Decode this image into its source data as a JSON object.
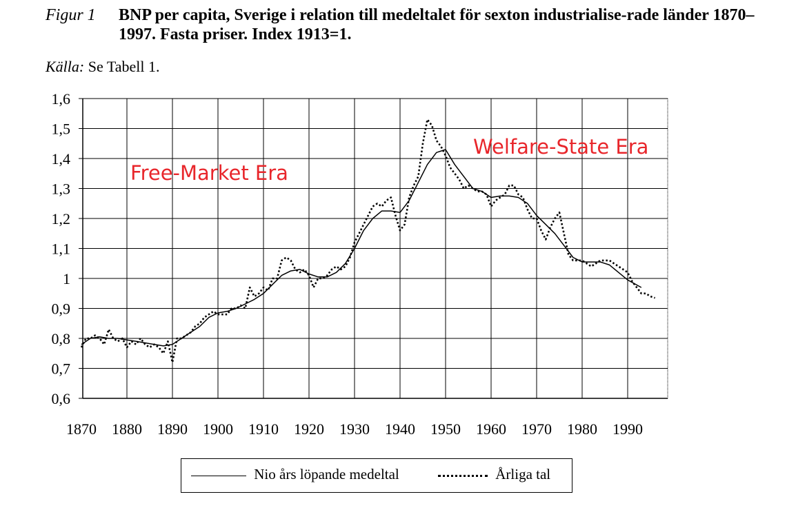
{
  "caption": {
    "label": "Figur 1",
    "title": "BNP per capita, Sverige i relation till medeltalet för sexton industrialise-rade länder 1870–1997. Fasta priser. Index 1913=1.",
    "source_label": "Källa:",
    "source_text": "Se Tabell 1."
  },
  "legend": {
    "solid_label": "Nio års löpande medeltal",
    "dotted_label": "Årliga tal"
  },
  "annotations": [
    "Free-Market Era",
    "Welfare-State Era"
  ],
  "colors": {
    "annotation": "#e8262b",
    "line": "#000000",
    "grid": "#000000"
  },
  "chart_data": {
    "type": "line",
    "title": "BNP per capita, Sverige i relation till medeltalet för sexton industrialise-rade länder 1870–1997. Fasta priser. Index 1913=1.",
    "xlabel": "",
    "ylabel": "",
    "xlim": [
      1870,
      1997
    ],
    "ylim": [
      0.6,
      1.6
    ],
    "x_ticks": [
      1870,
      1880,
      1890,
      1900,
      1910,
      1920,
      1930,
      1940,
      1950,
      1960,
      1970,
      1980,
      1990
    ],
    "x_tick_labels": [
      "1870",
      "1880",
      "1890",
      "1900",
      "1910",
      "1920",
      "1930",
      "1940",
      "1950",
      "1960",
      "1970",
      "1980",
      "1990"
    ],
    "y_ticks": [
      0.6,
      0.7,
      0.8,
      0.9,
      1.0,
      1.1,
      1.2,
      1.3,
      1.4,
      1.5,
      1.6
    ],
    "y_tick_labels": [
      "0,6",
      "0,7",
      "0,8",
      "0,9",
      "1",
      "1,1",
      "1,2",
      "1,3",
      "1,4",
      "1,5",
      "1,6"
    ],
    "grid": true,
    "legend_position": "bottom",
    "series": [
      {
        "name": "Nio års löpande medeltal",
        "style": "solid",
        "points": [
          [
            1870,
            0.78
          ],
          [
            1872,
            0.8
          ],
          [
            1874,
            0.805
          ],
          [
            1876,
            0.8
          ],
          [
            1878,
            0.8
          ],
          [
            1880,
            0.795
          ],
          [
            1882,
            0.79
          ],
          [
            1884,
            0.785
          ],
          [
            1886,
            0.78
          ],
          [
            1888,
            0.775
          ],
          [
            1890,
            0.78
          ],
          [
            1892,
            0.8
          ],
          [
            1894,
            0.82
          ],
          [
            1896,
            0.84
          ],
          [
            1898,
            0.87
          ],
          [
            1900,
            0.885
          ],
          [
            1902,
            0.89
          ],
          [
            1904,
            0.9
          ],
          [
            1906,
            0.915
          ],
          [
            1908,
            0.93
          ],
          [
            1910,
            0.95
          ],
          [
            1912,
            0.98
          ],
          [
            1914,
            1.01
          ],
          [
            1916,
            1.025
          ],
          [
            1918,
            1.03
          ],
          [
            1920,
            1.015
          ],
          [
            1922,
            1.005
          ],
          [
            1924,
            1.005
          ],
          [
            1926,
            1.02
          ],
          [
            1928,
            1.05
          ],
          [
            1930,
            1.1
          ],
          [
            1932,
            1.16
          ],
          [
            1934,
            1.2
          ],
          [
            1936,
            1.225
          ],
          [
            1938,
            1.225
          ],
          [
            1940,
            1.22
          ],
          [
            1942,
            1.26
          ],
          [
            1944,
            1.32
          ],
          [
            1946,
            1.38
          ],
          [
            1948,
            1.42
          ],
          [
            1950,
            1.43
          ],
          [
            1952,
            1.38
          ],
          [
            1954,
            1.34
          ],
          [
            1956,
            1.3
          ],
          [
            1958,
            1.29
          ],
          [
            1960,
            1.27
          ],
          [
            1962,
            1.275
          ],
          [
            1964,
            1.275
          ],
          [
            1966,
            1.27
          ],
          [
            1968,
            1.25
          ],
          [
            1970,
            1.21
          ],
          [
            1972,
            1.18
          ],
          [
            1974,
            1.15
          ],
          [
            1976,
            1.11
          ],
          [
            1978,
            1.07
          ],
          [
            1980,
            1.055
          ],
          [
            1982,
            1.055
          ],
          [
            1984,
            1.055
          ],
          [
            1986,
            1.045
          ],
          [
            1988,
            1.02
          ],
          [
            1990,
            0.995
          ],
          [
            1993,
            0.97
          ]
        ]
      },
      {
        "name": "Årliga tal",
        "style": "dotted",
        "points": [
          [
            1870,
            0.77
          ],
          [
            1871,
            0.8
          ],
          [
            1872,
            0.8
          ],
          [
            1873,
            0.81
          ],
          [
            1874,
            0.8
          ],
          [
            1875,
            0.78
          ],
          [
            1876,
            0.83
          ],
          [
            1877,
            0.8
          ],
          [
            1878,
            0.79
          ],
          [
            1879,
            0.8
          ],
          [
            1880,
            0.77
          ],
          [
            1881,
            0.79
          ],
          [
            1882,
            0.78
          ],
          [
            1883,
            0.8
          ],
          [
            1884,
            0.78
          ],
          [
            1885,
            0.77
          ],
          [
            1886,
            0.78
          ],
          [
            1887,
            0.77
          ],
          [
            1888,
            0.75
          ],
          [
            1889,
            0.79
          ],
          [
            1890,
            0.72
          ],
          [
            1891,
            0.8
          ],
          [
            1892,
            0.8
          ],
          [
            1893,
            0.81
          ],
          [
            1894,
            0.82
          ],
          [
            1895,
            0.84
          ],
          [
            1896,
            0.85
          ],
          [
            1897,
            0.87
          ],
          [
            1898,
            0.88
          ],
          [
            1899,
            0.89
          ],
          [
            1900,
            0.88
          ],
          [
            1901,
            0.88
          ],
          [
            1902,
            0.88
          ],
          [
            1903,
            0.9
          ],
          [
            1904,
            0.9
          ],
          [
            1905,
            0.91
          ],
          [
            1906,
            0.9
          ],
          [
            1907,
            0.97
          ],
          [
            1908,
            0.94
          ],
          [
            1909,
            0.95
          ],
          [
            1910,
            0.97
          ],
          [
            1911,
            0.96
          ],
          [
            1912,
            1.0
          ],
          [
            1913,
            1.0
          ],
          [
            1914,
            1.06
          ],
          [
            1915,
            1.07
          ],
          [
            1916,
            1.06
          ],
          [
            1917,
            1.03
          ],
          [
            1918,
            1.02
          ],
          [
            1919,
            1.03
          ],
          [
            1920,
            1.01
          ],
          [
            1921,
            0.97
          ],
          [
            1922,
            1.0
          ],
          [
            1923,
            1.0
          ],
          [
            1924,
            1.01
          ],
          [
            1925,
            1.03
          ],
          [
            1926,
            1.04
          ],
          [
            1927,
            1.03
          ],
          [
            1928,
            1.04
          ],
          [
            1929,
            1.07
          ],
          [
            1930,
            1.12
          ],
          [
            1931,
            1.15
          ],
          [
            1932,
            1.18
          ],
          [
            1933,
            1.21
          ],
          [
            1934,
            1.24
          ],
          [
            1935,
            1.25
          ],
          [
            1936,
            1.24
          ],
          [
            1937,
            1.26
          ],
          [
            1938,
            1.27
          ],
          [
            1939,
            1.21
          ],
          [
            1940,
            1.16
          ],
          [
            1941,
            1.18
          ],
          [
            1942,
            1.27
          ],
          [
            1943,
            1.31
          ],
          [
            1944,
            1.34
          ],
          [
            1945,
            1.45
          ],
          [
            1946,
            1.53
          ],
          [
            1947,
            1.51
          ],
          [
            1948,
            1.46
          ],
          [
            1949,
            1.44
          ],
          [
            1950,
            1.41
          ],
          [
            1951,
            1.37
          ],
          [
            1952,
            1.35
          ],
          [
            1953,
            1.33
          ],
          [
            1954,
            1.3
          ],
          [
            1955,
            1.31
          ],
          [
            1956,
            1.3
          ],
          [
            1957,
            1.29
          ],
          [
            1958,
            1.29
          ],
          [
            1959,
            1.28
          ],
          [
            1960,
            1.24
          ],
          [
            1961,
            1.26
          ],
          [
            1962,
            1.27
          ],
          [
            1963,
            1.28
          ],
          [
            1964,
            1.31
          ],
          [
            1965,
            1.31
          ],
          [
            1966,
            1.28
          ],
          [
            1967,
            1.27
          ],
          [
            1968,
            1.23
          ],
          [
            1969,
            1.2
          ],
          [
            1970,
            1.2
          ],
          [
            1971,
            1.16
          ],
          [
            1972,
            1.13
          ],
          [
            1973,
            1.17
          ],
          [
            1974,
            1.2
          ],
          [
            1975,
            1.22
          ],
          [
            1976,
            1.15
          ],
          [
            1977,
            1.08
          ],
          [
            1978,
            1.06
          ],
          [
            1979,
            1.06
          ],
          [
            1980,
            1.06
          ],
          [
            1981,
            1.05
          ],
          [
            1982,
            1.04
          ],
          [
            1983,
            1.05
          ],
          [
            1984,
            1.06
          ],
          [
            1985,
            1.06
          ],
          [
            1986,
            1.06
          ],
          [
            1987,
            1.05
          ],
          [
            1988,
            1.04
          ],
          [
            1989,
            1.03
          ],
          [
            1990,
            1.02
          ],
          [
            1991,
            0.99
          ],
          [
            1992,
            0.97
          ],
          [
            1993,
            0.95
          ],
          [
            1994,
            0.95
          ],
          [
            1995,
            0.94
          ],
          [
            1996,
            0.935
          ]
        ]
      }
    ]
  }
}
